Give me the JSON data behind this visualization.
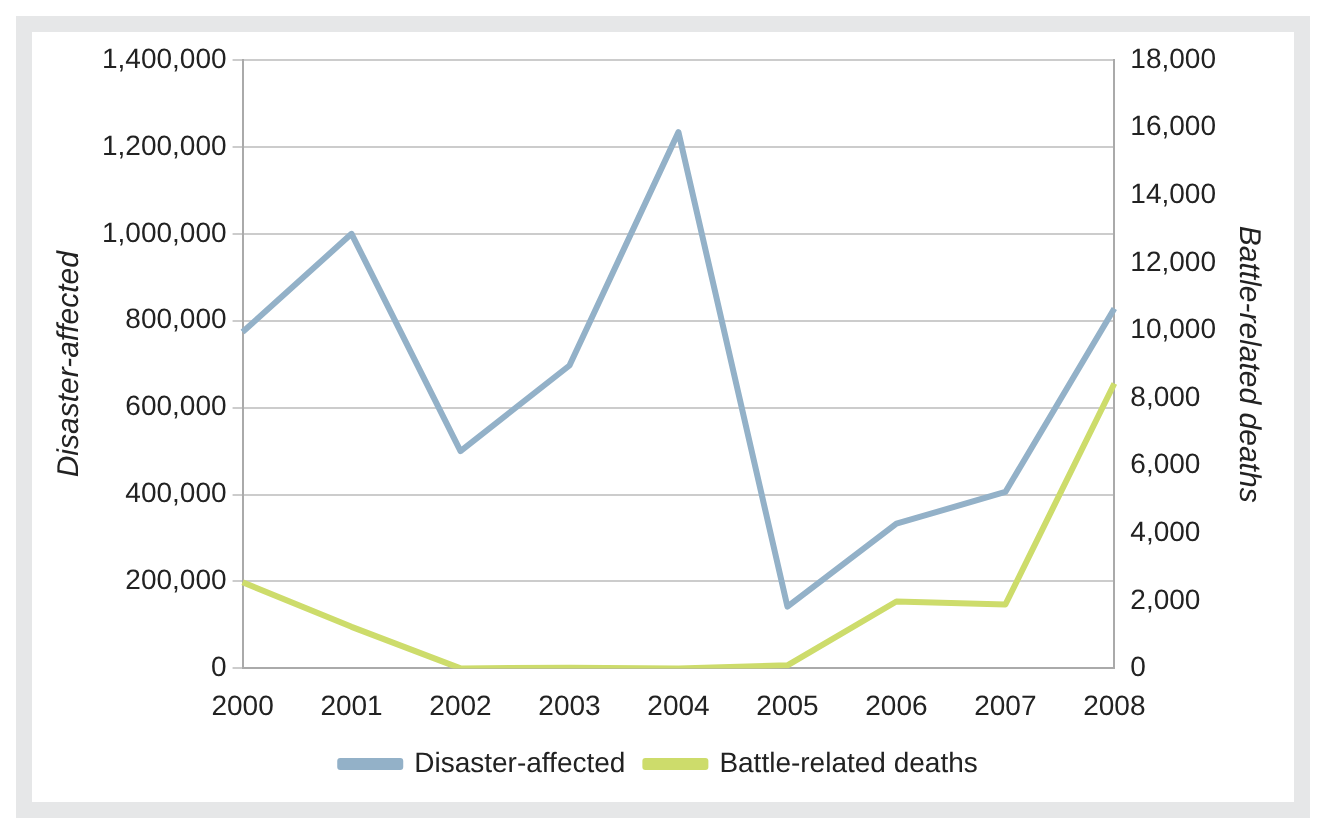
{
  "chart_data": {
    "type": "line",
    "categories": [
      "2000",
      "2001",
      "2002",
      "2003",
      "2004",
      "2005",
      "2006",
      "2007",
      "2008"
    ],
    "series": [
      {
        "name": "Disaster-affected",
        "color": "#93b1c8",
        "values": [
          774000,
          1000000,
          500000,
          697000,
          1234000,
          142000,
          333000,
          406000,
          828000
        ]
      },
      {
        "name": "Battle-related deaths",
        "color": "#cddc6b",
        "axis": "y2",
        "values": [
          2550,
          1230,
          0,
          20,
          0,
          90,
          1980,
          1890,
          8430
        ]
      }
    ],
    "ylabel": "Disaster-affected",
    "y2label": "Battle-related deaths",
    "ylim": [
      0,
      1400000
    ],
    "yticks": [
      {
        "value": 0,
        "label": "0"
      },
      {
        "value": 200000,
        "label": "200,000"
      },
      {
        "value": 400000,
        "label": "400,000"
      },
      {
        "value": 600000,
        "label": "600,000"
      },
      {
        "value": 800000,
        "label": "800,000"
      },
      {
        "value": 1000000,
        "label": "1,000,000"
      },
      {
        "value": 1200000,
        "label": "1,200,000"
      },
      {
        "value": 1400000,
        "label": "1,400,000"
      }
    ],
    "y2lim": [
      0,
      18000
    ],
    "y2ticks": [
      {
        "value": 0,
        "label": "0"
      },
      {
        "value": 2000,
        "label": "2,000"
      },
      {
        "value": 4000,
        "label": "4,000"
      },
      {
        "value": 6000,
        "label": "6,000"
      },
      {
        "value": 8000,
        "label": "8,000"
      },
      {
        "value": 10000,
        "label": "10,000"
      },
      {
        "value": 12000,
        "label": "12,000"
      },
      {
        "value": 14000,
        "label": "14,000"
      },
      {
        "value": 16000,
        "label": "16,000"
      },
      {
        "value": 18000,
        "label": "18,000"
      }
    ],
    "grid": "y",
    "legend": "bottom",
    "marker": "none",
    "line_style": "solid"
  }
}
